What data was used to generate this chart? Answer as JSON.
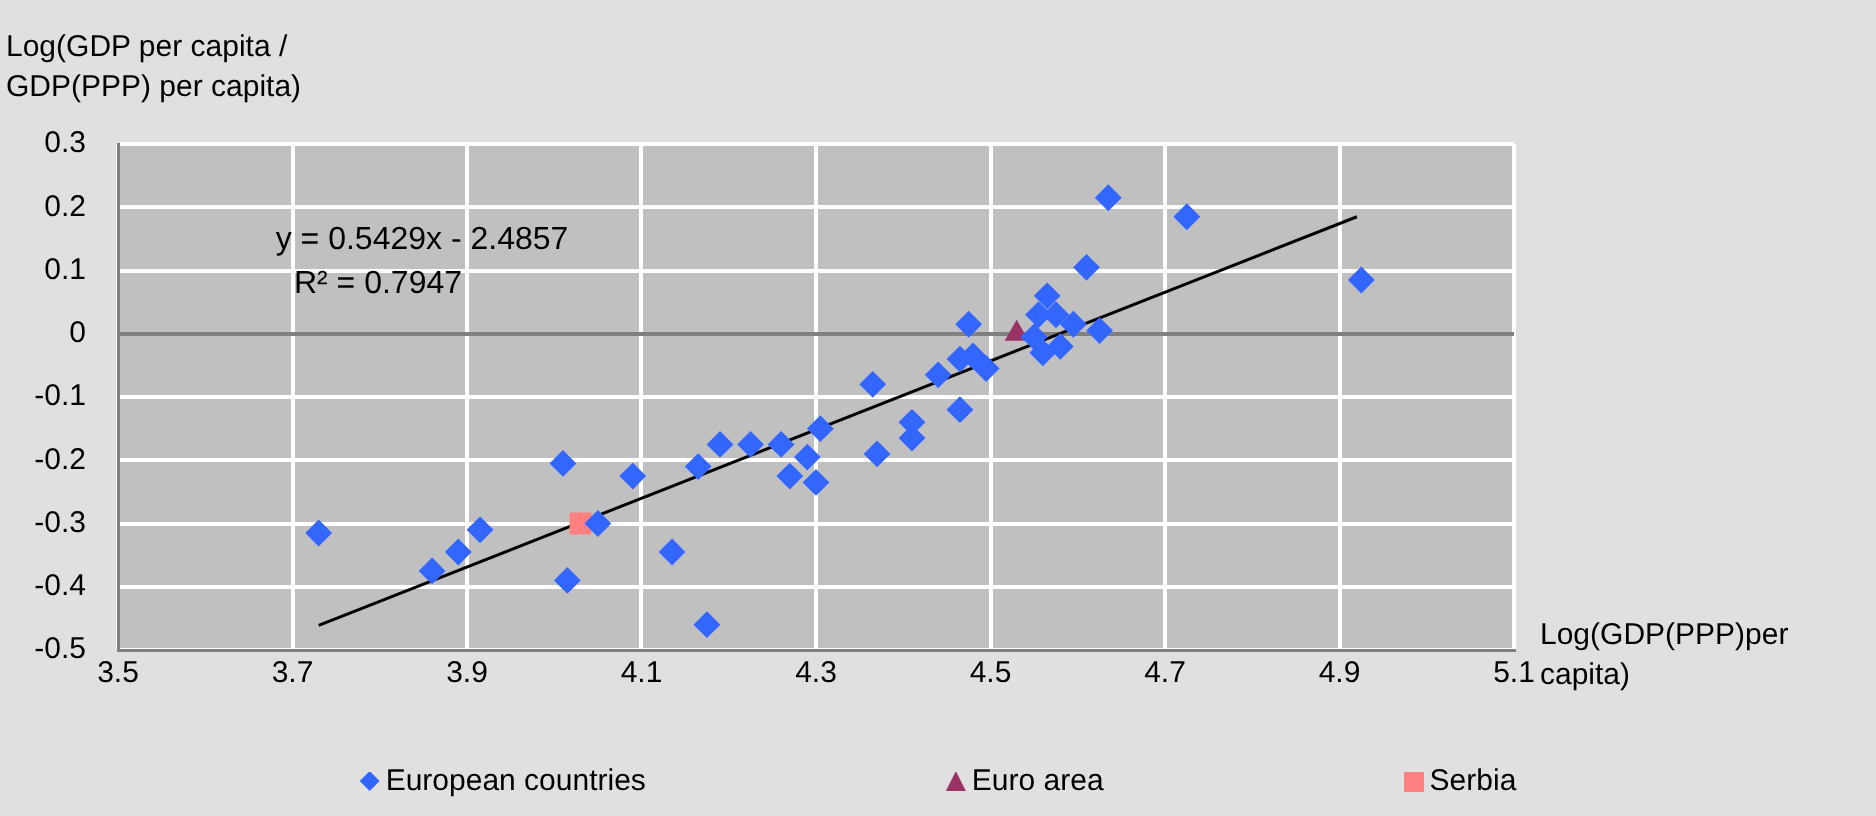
{
  "chart_data": {
    "type": "scatter",
    "xlabel": "Log(GDP(PPP)per capita)",
    "ylabel": "Log(GDP per capita / GDP(PPP) per capita)",
    "xlim": [
      3.5,
      5.1
    ],
    "xticks": [
      3.5,
      3.7,
      3.9,
      4.1,
      4.3,
      4.5,
      4.7,
      4.9,
      5.1
    ],
    "ylim": [
      -0.5,
      0.3
    ],
    "yticks": [
      -0.5,
      -0.4,
      -0.3,
      -0.2,
      -0.1,
      0,
      0.1,
      0.2,
      0.3
    ],
    "grid": true,
    "legend": "bottom",
    "annotations": [
      "y = 0.5429x - 2.4857",
      "R² = 0.7947"
    ],
    "series": [
      {
        "name": "European countries",
        "color": "#3366ff",
        "marker": "diamond",
        "x": [
          3.73,
          3.86,
          3.89,
          3.915,
          4.01,
          4.015,
          4.05,
          4.09,
          4.135,
          4.165,
          4.175,
          4.19,
          4.225,
          4.26,
          4.27,
          4.29,
          4.3,
          4.305,
          4.365,
          4.37,
          4.41,
          4.41,
          4.44,
          4.465,
          4.465,
          4.475,
          4.48,
          4.495,
          4.55,
          4.555,
          4.56,
          4.565,
          4.575,
          4.58,
          4.595,
          4.61,
          4.625,
          4.635,
          4.725,
          4.925
        ],
        "values": [
          -0.315,
          -0.375,
          -0.345,
          -0.31,
          -0.205,
          -0.39,
          -0.3,
          -0.225,
          -0.345,
          -0.21,
          -0.46,
          -0.175,
          -0.175,
          -0.175,
          -0.225,
          -0.195,
          -0.235,
          -0.15,
          -0.08,
          -0.19,
          -0.14,
          -0.165,
          -0.065,
          -0.04,
          -0.12,
          0.015,
          -0.035,
          -0.055,
          -0.005,
          0.03,
          -0.03,
          0.06,
          0.03,
          -0.02,
          0.015,
          0.105,
          0.005,
          0.215,
          0.185,
          0.085
        ]
      },
      {
        "name": "Euro area",
        "color": "#993366",
        "marker": "triangle",
        "x": [
          4.53
        ],
        "values": [
          0.0
        ]
      },
      {
        "name": "Serbia",
        "color": "#ff8080",
        "marker": "square",
        "x": [
          4.03
        ],
        "values": [
          -0.3
        ]
      },
      {
        "type": "line",
        "color": "#000000",
        "marker": "none",
        "x": [
          3.73,
          4.92
        ],
        "values": [
          -0.461,
          0.185
        ]
      }
    ]
  }
}
